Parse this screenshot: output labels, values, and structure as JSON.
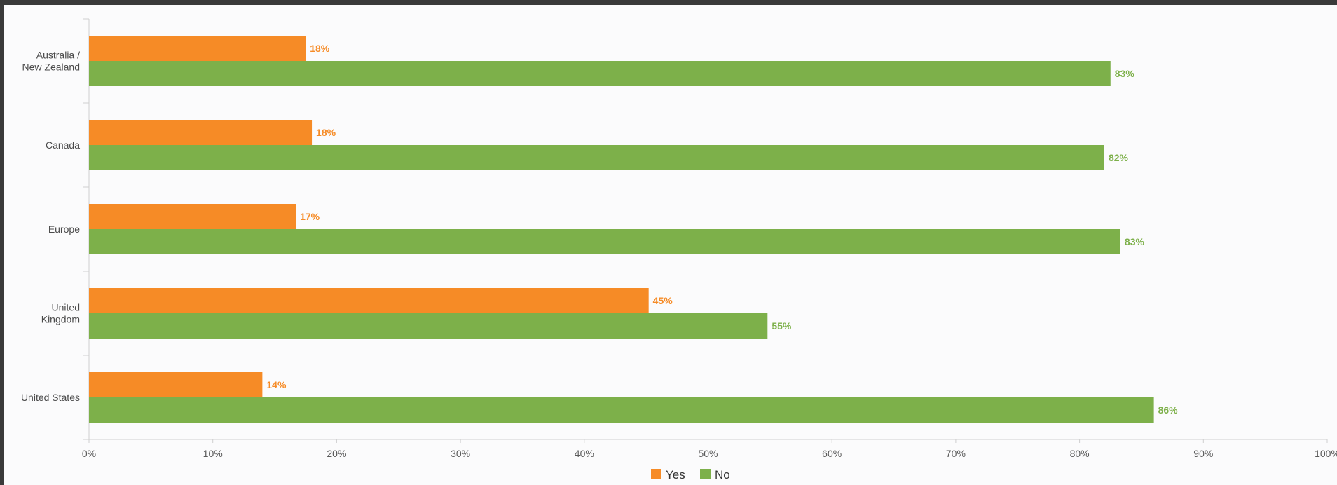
{
  "chart_data": {
    "type": "bar",
    "orientation": "horizontal",
    "categories": [
      [
        "Australia /",
        "New Zealand"
      ],
      [
        "Canada"
      ],
      [
        "Europe"
      ],
      [
        "United",
        "Kingdom"
      ],
      [
        "United States"
      ]
    ],
    "series": [
      {
        "name": "Yes",
        "color": "#f68b26",
        "values": [
          17.5,
          18,
          16.7,
          45.2,
          14
        ],
        "labels": [
          "18%",
          "18%",
          "17%",
          "45%",
          "14%"
        ]
      },
      {
        "name": "No",
        "color": "#7db04a",
        "values": [
          82.5,
          82,
          83.3,
          54.8,
          86
        ],
        "labels": [
          "83%",
          "82%",
          "83%",
          "55%",
          "86%"
        ]
      }
    ],
    "xlim": [
      0,
      100
    ],
    "x_ticks": [
      "0%",
      "10%",
      "20%",
      "30%",
      "40%",
      "50%",
      "60%",
      "70%",
      "80%",
      "90%",
      "100%"
    ],
    "grid": false,
    "legend": "bottom-center",
    "title": "",
    "xlabel": "",
    "ylabel": ""
  }
}
